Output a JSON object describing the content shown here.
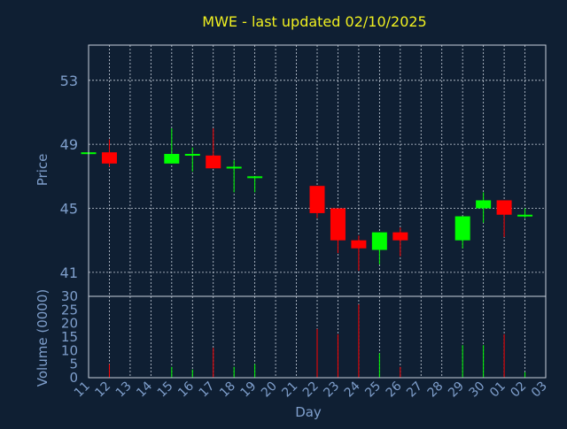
{
  "chart_data": {
    "type": "candlestick",
    "title": "MWE - last updated 02/10/2025",
    "xlabel": "Day",
    "ylabel_price": "Price",
    "ylabel_volume": "Volume (0000)",
    "x_ticks": [
      "11",
      "12",
      "13",
      "14",
      "15",
      "16",
      "17",
      "18",
      "19",
      "20",
      "21",
      "22",
      "23",
      "24",
      "25",
      "26",
      "27",
      "28",
      "29",
      "30",
      "01",
      "02",
      "03"
    ],
    "price_ticks": [
      41,
      45,
      49,
      53
    ],
    "price_range": [
      39.5,
      55.2
    ],
    "volume_ticks": [
      0,
      5,
      10,
      15,
      20,
      25,
      30
    ],
    "volume_range": [
      0,
      30
    ],
    "colors": {
      "up": "#00ff00",
      "down": "#ff0000",
      "background": "#0f1f33",
      "title": "#f0f020",
      "axis": "#7f9fcc"
    },
    "candles": [
      {
        "day": "11",
        "open": 48.5,
        "close": 48.5,
        "high": 48.5,
        "low": 48.5,
        "volume": 0
      },
      {
        "day": "12",
        "open": 48.5,
        "close": 47.8,
        "high": 49.3,
        "low": 47.6,
        "volume": 5
      },
      {
        "day": "15",
        "open": 47.8,
        "close": 48.4,
        "high": 50.0,
        "low": 47.8,
        "volume": 4
      },
      {
        "day": "16",
        "open": 48.3,
        "close": 48.4,
        "high": 48.8,
        "low": 47.3,
        "volume": 3
      },
      {
        "day": "17",
        "open": 48.3,
        "close": 47.5,
        "high": 50.0,
        "low": 47.5,
        "volume": 11
      },
      {
        "day": "18",
        "open": 47.5,
        "close": 47.6,
        "high": 48.0,
        "low": 46.0,
        "volume": 4
      },
      {
        "day": "19",
        "open": 46.9,
        "close": 47.0,
        "high": 47.0,
        "low": 46.0,
        "volume": 5
      },
      {
        "day": "22",
        "open": 46.4,
        "close": 44.7,
        "high": 46.4,
        "low": 44.4,
        "volume": 18
      },
      {
        "day": "23",
        "open": 45.0,
        "close": 43.0,
        "high": 45.0,
        "low": 42.2,
        "volume": 16
      },
      {
        "day": "24",
        "open": 43.0,
        "close": 42.5,
        "high": 43.3,
        "low": 41.1,
        "volume": 27
      },
      {
        "day": "25",
        "open": 42.4,
        "close": 43.5,
        "high": 43.5,
        "low": 41.5,
        "volume": 9
      },
      {
        "day": "26",
        "open": 43.5,
        "close": 43.0,
        "high": 43.8,
        "low": 42.0,
        "volume": 4
      },
      {
        "day": "29",
        "open": 43.0,
        "close": 44.5,
        "high": 44.5,
        "low": 42.5,
        "volume": 12
      },
      {
        "day": "30",
        "open": 45.0,
        "close": 45.5,
        "high": 46.0,
        "low": 44.1,
        "volume": 12
      },
      {
        "day": "01",
        "open": 45.5,
        "close": 44.6,
        "high": 45.5,
        "low": 43.2,
        "volume": 16
      },
      {
        "day": "02",
        "open": 44.5,
        "close": 44.6,
        "high": 45.0,
        "low": 44.4,
        "volume": 2
      }
    ]
  }
}
